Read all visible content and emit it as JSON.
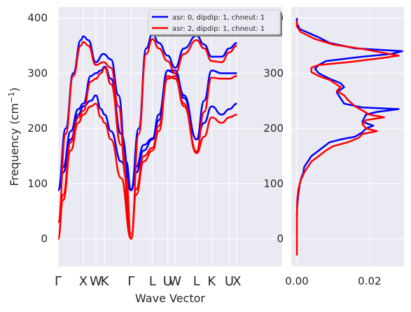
{
  "chart_data": [
    {
      "type": "line",
      "title": "",
      "xlabel": "Wave Vector",
      "ylabel_parts": [
        "Frequency (cm",
        "−1",
        ")"
      ],
      "ylim": [
        -50,
        420
      ],
      "xlim": [
        0,
        8.9
      ],
      "yticks": [
        0,
        100,
        200,
        300,
        400
      ],
      "xticks": [
        {
          "label": "Γ",
          "x": 0.0
        },
        {
          "label": "X",
          "x": 1.0
        },
        {
          "label": "W",
          "x": 1.5
        },
        {
          "label": "K",
          "x": 1.85
        },
        {
          "label": "Γ",
          "x": 2.9
        },
        {
          "label": "L",
          "x": 3.75
        },
        {
          "label": "U",
          "x": 4.35
        },
        {
          "label": "W",
          "x": 4.65
        },
        {
          "label": "L",
          "x": 5.5
        },
        {
          "label": "K",
          "x": 6.1
        },
        {
          "label": "U",
          "x": 6.8
        },
        {
          "label": "X",
          "x": 7.1
        }
      ],
      "grid": true,
      "legend_position": "top-right",
      "series": [
        {
          "name": "asr: 0, dipdip: 1, chneut: 1",
          "color": "#0000ff",
          "branches": [
            {
              "x": [
                0,
                0.2,
                0.5,
                0.8,
                1.0,
                1.3,
                1.5,
                1.7,
                1.85,
                2.1,
                2.5,
                2.9
              ],
              "y": [
                88,
                120,
                180,
                225,
                240,
                250,
                260,
                235,
                225,
                195,
                140,
                88
              ]
            },
            {
              "x": [
                0,
                0.2,
                0.5,
                0.8,
                1.0,
                1.3,
                1.5,
                1.7,
                1.85,
                2.1,
                2.5,
                2.9
              ],
              "y": [
                88,
                130,
                195,
                235,
                245,
                295,
                300,
                305,
                312,
                290,
                190,
                90
              ]
            },
            {
              "x": [
                0,
                0.3,
                0.6,
                0.9,
                1.0,
                1.2,
                1.5,
                1.8,
                2.1,
                2.4,
                2.7,
                2.9
              ],
              "y": [
                88,
                200,
                300,
                360,
                367,
                360,
                320,
                335,
                325,
                260,
                140,
                88
              ]
            },
            {
              "x": [
                2.9,
                3.1,
                3.4,
                3.75,
                4.0,
                4.35,
                4.65,
                5.0,
                5.5,
                5.8,
                6.1,
                6.5,
                6.8,
                7.1
              ],
              "y": [
                88,
                120,
                160,
                180,
                215,
                305,
                300,
                255,
                180,
                210,
                240,
                225,
                235,
                245
              ]
            },
            {
              "x": [
                2.9,
                3.1,
                3.4,
                3.75,
                4.0,
                4.35,
                4.65,
                5.0,
                5.5,
                5.8,
                6.1,
                6.5,
                6.8,
                7.1
              ],
              "y": [
                88,
                130,
                170,
                182,
                225,
                305,
                305,
                260,
                180,
                250,
                305,
                300,
                300,
                300
              ]
            },
            {
              "x": [
                2.9,
                3.2,
                3.5,
                3.75,
                4.0,
                4.35,
                4.65,
                5.0,
                5.5,
                5.8,
                6.1,
                6.5,
                6.8,
                7.1
              ],
              "y": [
                88,
                200,
                345,
                372,
                355,
                332,
                310,
                345,
                368,
                352,
                330,
                330,
                345,
                355
              ]
            }
          ]
        },
        {
          "name": "asr: 2, dipdip: 1, chneut: 1",
          "color": "#ff0000",
          "branches": [
            {
              "x": [
                0,
                0.2,
                0.5,
                0.8,
                1.0,
                1.3,
                1.5,
                1.7,
                1.85,
                2.1,
                2.5,
                2.9
              ],
              "y": [
                0,
                70,
                160,
                210,
                225,
                240,
                245,
                220,
                210,
                180,
                110,
                0
              ]
            },
            {
              "x": [
                0,
                0.2,
                0.5,
                0.8,
                1.0,
                1.3,
                1.5,
                1.7,
                1.85,
                2.1,
                2.5,
                2.9
              ],
              "y": [
                0,
                80,
                175,
                220,
                232,
                285,
                290,
                300,
                310,
                280,
                170,
                10
              ]
            },
            {
              "x": [
                0,
                0.3,
                0.6,
                0.9,
                1.0,
                1.2,
                1.5,
                1.8,
                2.1,
                2.4,
                2.7,
                2.9
              ],
              "y": [
                30,
                190,
                295,
                350,
                357,
                350,
                315,
                320,
                310,
                240,
                110,
                0
              ]
            },
            {
              "x": [
                2.9,
                3.1,
                3.4,
                3.75,
                4.0,
                4.35,
                4.65,
                5.0,
                5.5,
                5.8,
                6.1,
                6.5,
                6.8,
                7.1
              ],
              "y": [
                0,
                80,
                140,
                160,
                195,
                295,
                290,
                240,
                155,
                185,
                220,
                210,
                220,
                225
              ]
            },
            {
              "x": [
                2.9,
                3.1,
                3.4,
                3.75,
                4.0,
                4.35,
                4.65,
                5.0,
                5.5,
                5.8,
                6.1,
                6.5,
                6.8,
                7.1
              ],
              "y": [
                0,
                90,
                150,
                165,
                205,
                290,
                295,
                245,
                158,
                230,
                292,
                290,
                290,
                295
              ]
            },
            {
              "x": [
                2.9,
                3.2,
                3.5,
                3.75,
                4.0,
                4.35,
                4.65,
                5.0,
                5.5,
                5.8,
                6.1,
                6.5,
                6.8,
                7.1
              ],
              "y": [
                0,
                190,
                335,
                362,
                345,
                322,
                300,
                335,
                360,
                345,
                322,
                320,
                338,
                350
              ]
            }
          ]
        }
      ]
    },
    {
      "type": "line",
      "title": "",
      "xlabel": "",
      "ylabel": "",
      "orientation": "horizontal",
      "ylim": [
        -50,
        420
      ],
      "xlim": [
        0,
        0.031
      ],
      "xticks": [
        0.0,
        0.02
      ],
      "xtick_labels": [
        "0.00",
        "0.02"
      ],
      "yticks": [
        0,
        100,
        200,
        300,
        400
      ],
      "grid": true,
      "series": [
        {
          "name": "asr: 0, dipdip: 1, chneut: 1",
          "color": "#0000ff",
          "dos": [
            [
              0.0,
              400
            ],
            [
              0.0,
              390
            ],
            [
              0.0008,
              380
            ],
            [
              0.006,
              365
            ],
            [
              0.009,
              355
            ],
            [
              0.016,
              345
            ],
            [
              0.029,
              340
            ],
            [
              0.026,
              335
            ],
            [
              0.018,
              330
            ],
            [
              0.008,
              322
            ],
            [
              0.006,
              315
            ],
            [
              0.005,
              308
            ],
            [
              0.006,
              300
            ],
            [
              0.009,
              290
            ],
            [
              0.012,
              282
            ],
            [
              0.013,
              275
            ],
            [
              0.011,
              265
            ],
            [
              0.012,
              255
            ],
            [
              0.013,
              245
            ],
            [
              0.018,
              238
            ],
            [
              0.028,
              235
            ],
            [
              0.022,
              230
            ],
            [
              0.019,
              225
            ],
            [
              0.018,
              212
            ],
            [
              0.021,
              205
            ],
            [
              0.019,
              200
            ],
            [
              0.018,
              193
            ],
            [
              0.016,
              185
            ],
            [
              0.012,
              180
            ],
            [
              0.009,
              175
            ],
            [
              0.007,
              165
            ],
            [
              0.006,
              160
            ],
            [
              0.004,
              150
            ],
            [
              0.003,
              140
            ],
            [
              0.002,
              130
            ],
            [
              0.0018,
              120
            ],
            [
              0.0012,
              110
            ],
            [
              0.0008,
              100
            ],
            [
              0.0004,
              80
            ],
            [
              0.0001,
              60
            ],
            [
              0.0,
              40
            ]
          ]
        },
        {
          "name": "asr: 2, dipdip: 1, chneut: 1",
          "color": "#ff0000",
          "dos": [
            [
              0.0,
              395
            ],
            [
              0.0,
              385
            ],
            [
              0.001,
              375
            ],
            [
              0.005,
              362
            ],
            [
              0.01,
              352
            ],
            [
              0.018,
              344
            ],
            [
              0.028,
              332
            ],
            [
              0.024,
              328
            ],
            [
              0.014,
              320
            ],
            [
              0.006,
              315
            ],
            [
              0.004,
              310
            ],
            [
              0.004,
              302
            ],
            [
              0.006,
              295
            ],
            [
              0.009,
              288
            ],
            [
              0.012,
              275
            ],
            [
              0.011,
              268
            ],
            [
              0.013,
              260
            ],
            [
              0.014,
              252
            ],
            [
              0.016,
              240
            ],
            [
              0.02,
              225
            ],
            [
              0.024,
              220
            ],
            [
              0.019,
              215
            ],
            [
              0.018,
              208
            ],
            [
              0.019,
              200
            ],
            [
              0.022,
              195
            ],
            [
              0.018,
              190
            ],
            [
              0.017,
              183
            ],
            [
              0.014,
              175
            ],
            [
              0.01,
              168
            ],
            [
              0.008,
              160
            ],
            [
              0.006,
              150
            ],
            [
              0.004,
              140
            ],
            [
              0.003,
              130
            ],
            [
              0.002,
              120
            ],
            [
              0.001,
              105
            ],
            [
              0.0004,
              90
            ],
            [
              0.0001,
              70
            ],
            [
              0.0,
              40
            ],
            [
              0.0,
              0
            ],
            [
              0.0,
              -30
            ]
          ]
        }
      ]
    }
  ]
}
